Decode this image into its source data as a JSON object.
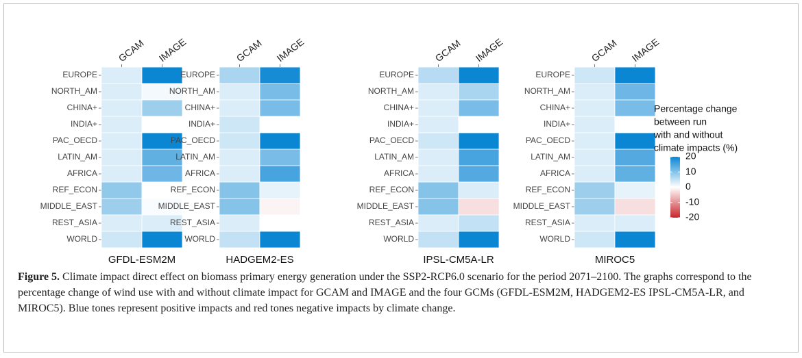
{
  "chart_data": [
    {
      "type": "heatmap",
      "title": "GFDL-ESM2M",
      "x": [
        "GCAM",
        "IMAGE"
      ],
      "categories": [
        "EUROPE",
        "NORTH_AM",
        "CHINA+",
        "INDIA+",
        "PAC_OECD",
        "LATIN_AM",
        "AFRICA",
        "REF_ECON",
        "MIDDLE_EAST",
        "REST_ASIA",
        "WORLD"
      ],
      "values": [
        [
          3,
          20
        ],
        [
          3,
          1
        ],
        [
          3,
          8
        ],
        [
          3,
          0
        ],
        [
          3,
          20
        ],
        [
          3,
          13
        ],
        [
          3,
          12
        ],
        [
          9,
          0
        ],
        [
          8,
          0.5
        ],
        [
          3,
          3
        ],
        [
          4,
          20
        ]
      ]
    },
    {
      "type": "heatmap",
      "title": "HADGEM2-ES",
      "x": [
        "GCAM",
        "IMAGE"
      ],
      "categories": [
        "EUROPE",
        "NORTH_AM",
        "CHINA+",
        "INDIA+",
        "PAC_OECD",
        "LATIN_AM",
        "AFRICA",
        "REF_ECON",
        "MIDDLE_EAST",
        "REST_ASIA",
        "WORLD"
      ],
      "values": [
        [
          7,
          19
        ],
        [
          3,
          11
        ],
        [
          3,
          11
        ],
        [
          4,
          0
        ],
        [
          4,
          20
        ],
        [
          3,
          11
        ],
        [
          3,
          15
        ],
        [
          10,
          2
        ],
        [
          10,
          -1
        ],
        [
          3,
          0
        ],
        [
          5,
          20
        ]
      ]
    },
    {
      "type": "heatmap",
      "title": "IPSL-CM5A-LR",
      "x": [
        "GCAM",
        "IMAGE"
      ],
      "categories": [
        "EUROPE",
        "NORTH_AM",
        "CHINA+",
        "INDIA+",
        "PAC_OECD",
        "LATIN_AM",
        "AFRICA",
        "REF_ECON",
        "MIDDLE_EAST",
        "REST_ASIA",
        "WORLD"
      ],
      "values": [
        [
          6,
          20
        ],
        [
          3,
          7
        ],
        [
          3,
          11
        ],
        [
          3,
          0
        ],
        [
          4,
          20
        ],
        [
          3,
          15
        ],
        [
          3,
          14
        ],
        [
          10,
          3
        ],
        [
          10,
          -3
        ],
        [
          3,
          5
        ],
        [
          5,
          20
        ]
      ]
    },
    {
      "type": "heatmap",
      "title": "MIROC5",
      "x": [
        "GCAM",
        "IMAGE"
      ],
      "categories": [
        "EUROPE",
        "NORTH_AM",
        "CHINA+",
        "INDIA+",
        "PAC_OECD",
        "LATIN_AM",
        "AFRICA",
        "REF_ECON",
        "MIDDLE_EAST",
        "REST_ASIA",
        "WORLD"
      ],
      "values": [
        [
          4,
          20
        ],
        [
          3,
          12
        ],
        [
          3,
          11
        ],
        [
          3,
          0
        ],
        [
          3,
          20
        ],
        [
          3,
          14
        ],
        [
          3,
          13
        ],
        [
          8,
          2
        ],
        [
          8,
          -3
        ],
        [
          3,
          3
        ],
        [
          4,
          20
        ]
      ],
      "colorbar": {
        "title": [
          "Percentage change",
          "between run",
          "with and without",
          "climate impacts (%)"
        ],
        "clim": [
          -20,
          20
        ],
        "ticks": [
          20,
          10,
          0,
          -10,
          -20
        ],
        "colors": [
          "#c8252b",
          "#ffffff",
          "#0b86d3"
        ]
      }
    }
  ],
  "caption": {
    "label": "Figure 5.",
    "text": "Climate impact direct effect on biomass primary energy generation under the SSP2-RCP6.0 scenario for the period 2071–2100. The graphs correspond to the percentage change of wind use with and without climate impact for GCAM and IMAGE and the four GCMs (GFDL-ESM2M, HADGEM2-ES IPSL-CM5A-LR, and MIROC5). Blue tones represent positive impacts and red tones negative impacts by climate change."
  }
}
